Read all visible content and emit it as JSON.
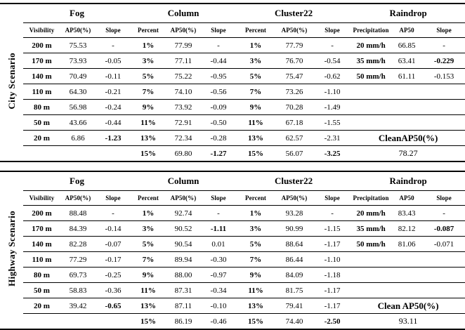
{
  "page": {
    "background": "#ffffff",
    "text_color": "#000000",
    "line_color": "#000000"
  },
  "scenarios": [
    {
      "label": "City Scenario",
      "groups": [
        "Fog",
        "Column",
        "Cluster22",
        "Raindrop"
      ],
      "subheaders": [
        "Visibility",
        "AP50(%)",
        "Slope",
        "Percent",
        "AP50(%)",
        "Slope",
        "Percent",
        "AP50(%)",
        "Slope",
        "Precipitation",
        "AP50",
        "Slope"
      ],
      "rows": [
        [
          "200 m",
          "75.53",
          "-",
          "1%",
          "77.99",
          "-",
          "1%",
          "77.79",
          "-",
          "20 mm/h",
          "66.85",
          "-"
        ],
        [
          "170 m",
          "73.93",
          "-0.05",
          "3%",
          "77.11",
          "-0.44",
          "3%",
          "76.70",
          "-0.54",
          "35 mm/h",
          "63.41",
          "-0.229"
        ],
        [
          "140 m",
          "70.49",
          "-0.11",
          "5%",
          "75.22",
          "-0.95",
          "5%",
          "75.47",
          "-0.62",
          "50 mm/h",
          "61.11",
          "-0.153"
        ],
        [
          "110 m",
          "64.30",
          "-0.21",
          "7%",
          "74.10",
          "-0.56",
          "7%",
          "73.26",
          "-1.10",
          "",
          "",
          ""
        ],
        [
          "80 m",
          "56.98",
          "-0.24",
          "9%",
          "73.92",
          "-0.09",
          "9%",
          "70.28",
          "-1.49",
          "",
          "",
          ""
        ],
        [
          "50 m",
          "43.66",
          "-0.44",
          "11%",
          "72.91",
          "-0.50",
          "11%",
          "67.18",
          "-1.55",
          "",
          "",
          ""
        ],
        [
          "20 m",
          "6.86",
          "-1.23",
          "13%",
          "72.34",
          "-0.28",
          "13%",
          "62.57",
          "-2.31",
          "",
          "",
          ""
        ],
        [
          "",
          "",
          "",
          "15%",
          "69.80",
          "-1.27",
          "15%",
          "56.07",
          "-3.25",
          "",
          "",
          ""
        ]
      ],
      "bold_cells": [
        [
          1,
          11
        ],
        [
          6,
          2
        ],
        [
          7,
          5
        ],
        [
          7,
          8
        ]
      ],
      "clean_label": "CleanAP50(%)",
      "clean_value": "78.27"
    },
    {
      "label": "Highway Scenario",
      "groups": [
        "Fog",
        "Column",
        "Cluster22",
        "Raindrop"
      ],
      "subheaders": [
        "Visibility",
        "AP50(%)",
        "Slope",
        "Percent",
        "AP50(%)",
        "Slope",
        "Percent",
        "AP50(%)",
        "Slope",
        "Precipitation",
        "AP50",
        "Slope"
      ],
      "rows": [
        [
          "200 m",
          "88.48",
          "-",
          "1%",
          "92.74",
          "-",
          "1%",
          "93.28",
          "-",
          "20 mm/h",
          "83.43",
          "-"
        ],
        [
          "170 m",
          "84.39",
          "-0.14",
          "3%",
          "90.52",
          "-1.11",
          "3%",
          "90.99",
          "-1.15",
          "35 mm/h",
          "82.12",
          "-0.087"
        ],
        [
          "140 m",
          "82.28",
          "-0.07",
          "5%",
          "90.54",
          "0.01",
          "5%",
          "88.64",
          "-1.17",
          "50 mm/h",
          "81.06",
          "-0.071"
        ],
        [
          "110 m",
          "77.29",
          "-0.17",
          "7%",
          "89.94",
          "-0.30",
          "7%",
          "86.44",
          "-1.10",
          "",
          "",
          ""
        ],
        [
          "80 m",
          "69.73",
          "-0.25",
          "9%",
          "88.00",
          "-0.97",
          "9%",
          "84.09",
          "-1.18",
          "",
          "",
          ""
        ],
        [
          "50 m",
          "58.83",
          "-0.36",
          "11%",
          "87.31",
          "-0.34",
          "11%",
          "81.75",
          "-1.17",
          "",
          "",
          ""
        ],
        [
          "20 m",
          "39.42",
          "-0.65",
          "13%",
          "87.11",
          "-0.10",
          "13%",
          "79.41",
          "-1.17",
          "",
          "",
          ""
        ],
        [
          "",
          "",
          "",
          "15%",
          "86.19",
          "-0.46",
          "15%",
          "74.40",
          "-2.50",
          "",
          "",
          ""
        ]
      ],
      "bold_cells": [
        [
          1,
          5
        ],
        [
          1,
          11
        ],
        [
          6,
          2
        ],
        [
          7,
          8
        ]
      ],
      "clean_label": "Clean AP50(%)",
      "clean_value": "93.11"
    }
  ]
}
